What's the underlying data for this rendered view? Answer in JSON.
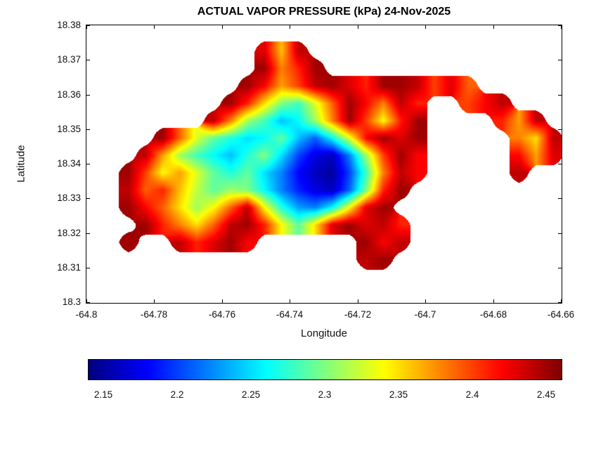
{
  "figure": {
    "title": "ACTUAL VAPOR PRESSURE (kPa) 24-Nov-2025",
    "background": "#ffffff"
  },
  "axes": {
    "xlabel": "Longitude",
    "ylabel": "Latitude",
    "xlim": [
      -64.8,
      -64.66
    ],
    "ylim": [
      18.3,
      18.38
    ],
    "xticks": [
      {
        "value": -64.8,
        "label": "-64.8"
      },
      {
        "value": -64.78,
        "label": "-64.78"
      },
      {
        "value": -64.76,
        "label": "-64.76"
      },
      {
        "value": -64.74,
        "label": "-64.74"
      },
      {
        "value": -64.72,
        "label": "-64.72"
      },
      {
        "value": -64.7,
        "label": "-64.7"
      },
      {
        "value": -64.68,
        "label": "-64.68"
      },
      {
        "value": -64.66,
        "label": "-64.66"
      }
    ],
    "yticks": [
      {
        "value": 18.3,
        "label": "18.3"
      },
      {
        "value": 18.31,
        "label": "18.31"
      },
      {
        "value": 18.32,
        "label": "18.32"
      },
      {
        "value": 18.33,
        "label": "18.33"
      },
      {
        "value": 18.34,
        "label": "18.34"
      },
      {
        "value": 18.35,
        "label": "18.35"
      },
      {
        "value": 18.36,
        "label": "18.36"
      },
      {
        "value": 18.37,
        "label": "18.37"
      },
      {
        "value": 18.38,
        "label": "18.38"
      }
    ]
  },
  "colorbar": {
    "orientation": "horizontal",
    "colormap": "jet",
    "clim": [
      2.14,
      2.46
    ],
    "ticks": [
      {
        "value": 2.15,
        "label": "2.15"
      },
      {
        "value": 2.2,
        "label": "2.2"
      },
      {
        "value": 2.25,
        "label": "2.25"
      },
      {
        "value": 2.3,
        "label": "2.3"
      },
      {
        "value": 2.35,
        "label": "2.35"
      },
      {
        "value": 2.4,
        "label": "2.4"
      },
      {
        "value": 2.45,
        "label": "2.45"
      }
    ]
  },
  "chart_data": {
    "type": "heatmap",
    "title": "ACTUAL VAPOR PRESSURE (kPa) 24-Nov-2025",
    "units": "kPa",
    "date": "24-Nov-2025",
    "xlabel": "Longitude",
    "ylabel": "Latitude",
    "xlim": [
      -64.8,
      -64.66
    ],
    "ylim": [
      18.3,
      18.38
    ],
    "colormap": "jet",
    "clim": [
      2.14,
      2.46
    ],
    "legend": "colorbar-horizontal",
    "grid": {
      "lon_left": -64.8,
      "lat_top": 18.375,
      "cell_size_deg": 0.005,
      "cols": 28,
      "rows": 13,
      "note": "values estimated from colormap; null = ocean (no data)",
      "values": [
        [
          null,
          null,
          null,
          null,
          null,
          null,
          null,
          null,
          null,
          null,
          2.43,
          2.36,
          2.44,
          null,
          null,
          null,
          null,
          null,
          null,
          null,
          null,
          null,
          null,
          null,
          null,
          null,
          null,
          null
        ],
        [
          null,
          null,
          null,
          null,
          null,
          null,
          null,
          null,
          null,
          null,
          2.45,
          2.38,
          2.41,
          2.45,
          null,
          null,
          null,
          null,
          null,
          null,
          null,
          null,
          null,
          null,
          null,
          null,
          null,
          null
        ],
        [
          null,
          null,
          null,
          null,
          null,
          null,
          null,
          null,
          null,
          2.45,
          2.42,
          2.37,
          2.4,
          2.44,
          2.45,
          2.43,
          2.41,
          2.45,
          2.45,
          2.44,
          2.4,
          2.43,
          2.39,
          null,
          null,
          null,
          null,
          null
        ],
        [
          null,
          null,
          null,
          null,
          null,
          null,
          null,
          null,
          2.45,
          2.41,
          2.35,
          2.3,
          2.28,
          2.33,
          2.39,
          2.45,
          2.42,
          2.38,
          2.44,
          2.41,
          null,
          null,
          2.4,
          2.42,
          2.44,
          null,
          null,
          null
        ],
        [
          null,
          null,
          null,
          null,
          null,
          null,
          null,
          2.44,
          2.38,
          2.31,
          2.28,
          2.24,
          2.26,
          2.31,
          2.38,
          2.45,
          2.4,
          2.34,
          2.41,
          2.45,
          null,
          null,
          null,
          null,
          2.41,
          2.37,
          2.44,
          null
        ],
        [
          null,
          null,
          null,
          null,
          2.45,
          2.39,
          2.33,
          2.29,
          2.27,
          2.25,
          2.26,
          2.29,
          2.24,
          2.21,
          2.26,
          2.33,
          2.42,
          2.45,
          2.43,
          2.45,
          null,
          null,
          null,
          null,
          null,
          2.38,
          2.35,
          2.44
        ],
        [
          null,
          null,
          null,
          2.44,
          2.37,
          2.31,
          2.28,
          2.26,
          2.24,
          2.27,
          2.3,
          2.25,
          2.2,
          2.17,
          2.16,
          2.22,
          2.31,
          2.4,
          2.45,
          2.42,
          null,
          null,
          null,
          null,
          null,
          2.42,
          2.37,
          2.43
        ],
        [
          null,
          null,
          2.45,
          2.4,
          2.34,
          2.37,
          2.33,
          2.29,
          2.27,
          2.29,
          2.25,
          2.22,
          2.18,
          2.16,
          2.15,
          2.2,
          2.28,
          2.38,
          2.44,
          2.42,
          null,
          null,
          null,
          null,
          null,
          2.44,
          null,
          null
        ],
        [
          null,
          null,
          2.44,
          2.39,
          2.41,
          2.36,
          2.32,
          2.29,
          2.31,
          2.3,
          2.26,
          2.22,
          2.19,
          2.17,
          2.16,
          2.21,
          2.3,
          2.41,
          2.45,
          null,
          null,
          null,
          null,
          null,
          null,
          null,
          null,
          null
        ],
        [
          null,
          null,
          2.45,
          2.42,
          2.39,
          2.35,
          2.31,
          2.34,
          2.39,
          2.44,
          2.34,
          2.27,
          2.23,
          2.22,
          2.26,
          2.34,
          2.43,
          2.45,
          null,
          null,
          null,
          null,
          null,
          null,
          null,
          null,
          null,
          null
        ],
        [
          null,
          null,
          null,
          2.45,
          2.41,
          2.38,
          2.35,
          2.39,
          2.44,
          2.45,
          2.41,
          2.34,
          2.29,
          2.35,
          2.43,
          2.45,
          2.43,
          2.44,
          2.41,
          null,
          null,
          null,
          null,
          null,
          null,
          null,
          null,
          null
        ],
        [
          null,
          null,
          2.45,
          null,
          null,
          2.44,
          2.41,
          2.43,
          2.45,
          2.42,
          null,
          null,
          null,
          null,
          null,
          null,
          2.45,
          2.42,
          2.44,
          null,
          null,
          null,
          null,
          null,
          null,
          null,
          null,
          null
        ],
        [
          null,
          null,
          null,
          null,
          null,
          null,
          null,
          null,
          null,
          null,
          null,
          null,
          null,
          null,
          null,
          null,
          2.44,
          2.45,
          null,
          null,
          null,
          null,
          null,
          null,
          null,
          null,
          null,
          null
        ]
      ]
    }
  }
}
